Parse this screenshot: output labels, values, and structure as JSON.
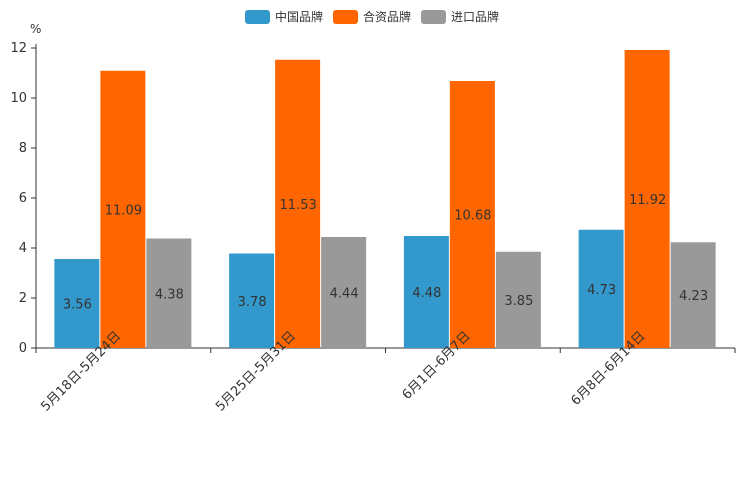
{
  "chart_data": {
    "type": "bar",
    "unit_label": "%",
    "categories": [
      "5月18日-5月24日",
      "5月25日-5月31日",
      "6月1日-6月7日",
      "6月8日-6月14日"
    ],
    "series": [
      {
        "name": "中国品牌",
        "color": "#3399cc",
        "values": [
          3.56,
          3.78,
          4.48,
          4.73
        ]
      },
      {
        "name": "合资品牌",
        "color": "#ff6600",
        "values": [
          11.09,
          11.53,
          10.68,
          11.92
        ]
      },
      {
        "name": "进口品牌",
        "color": "#999999",
        "values": [
          4.38,
          4.44,
          3.85,
          4.23
        ]
      }
    ],
    "ylim": [
      0,
      12
    ],
    "yticks": [
      0,
      2,
      4,
      6,
      8,
      10,
      12
    ],
    "legend_position": "top-center"
  }
}
